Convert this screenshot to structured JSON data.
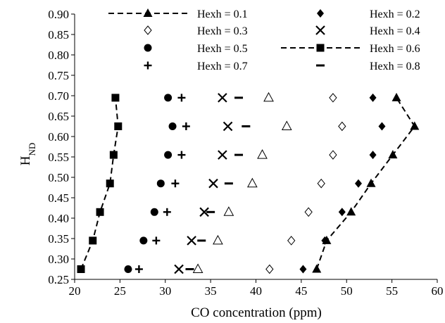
{
  "chart_data": {
    "type": "scatter",
    "title": "",
    "xlabel": "CO concentration (ppm)",
    "ylabel": "H",
    "ylabel_sub": "ND",
    "xlim": [
      20,
      60
    ],
    "ylim": [
      0.25,
      0.9
    ],
    "x_ticks": [
      "20",
      "25",
      "30",
      "35",
      "40",
      "45",
      "50",
      "55",
      "60"
    ],
    "y_ticks": [
      "0.25",
      "0.30",
      "0.35",
      "0.40",
      "0.45",
      "0.50",
      "0.55",
      "0.60",
      "0.65",
      "0.70",
      "0.75",
      "0.80",
      "0.85",
      "0.90"
    ],
    "grid": false,
    "legend_position": "top",
    "series": [
      {
        "name": "Hexh = 0.1",
        "marker": "triangle-filled",
        "line": "dashed",
        "x": [
          46.7,
          47.8,
          50.5,
          52.7,
          55.1,
          57.5,
          55.5
        ],
        "y": [
          0.275,
          0.345,
          0.415,
          0.485,
          0.555,
          0.625,
          0.695
        ]
      },
      {
        "name": "Hexh = 0.2",
        "marker": "diamond-filled",
        "line": "none",
        "x": [
          45.2,
          47.6,
          49.5,
          51.3,
          52.9,
          53.9,
          52.9
        ],
        "y": [
          0.275,
          0.345,
          0.415,
          0.485,
          0.555,
          0.625,
          0.695
        ]
      },
      {
        "name": "Hexh = 0.3",
        "marker": "diamond-open",
        "line": "none",
        "x": [
          41.5,
          43.9,
          45.8,
          47.2,
          48.5,
          49.5,
          48.5
        ],
        "y": [
          0.275,
          0.345,
          0.415,
          0.485,
          0.555,
          0.625,
          0.695
        ]
      },
      {
        "name": "Hexh = 0.4",
        "marker": "x",
        "line": "none",
        "x": [
          31.5,
          32.9,
          34.3,
          35.3,
          36.3,
          36.9,
          36.3
        ],
        "y": [
          0.275,
          0.345,
          0.415,
          0.485,
          0.555,
          0.625,
          0.695
        ]
      },
      {
        "name": "Hexh = 0.5",
        "marker": "circle-filled",
        "line": "none",
        "x": [
          25.9,
          27.6,
          28.8,
          29.5,
          30.3,
          30.8,
          30.3
        ],
        "y": [
          0.275,
          0.345,
          0.415,
          0.485,
          0.555,
          0.625,
          0.695
        ]
      },
      {
        "name": "Hexh = 0.6",
        "marker": "square-filled",
        "line": "dashed",
        "x": [
          20.7,
          22.0,
          22.8,
          23.9,
          24.3,
          24.8,
          24.5
        ],
        "y": [
          0.275,
          0.345,
          0.415,
          0.485,
          0.555,
          0.625,
          0.695
        ]
      },
      {
        "name": "Hexh = 0.7",
        "marker": "plus",
        "line": "none",
        "x": [
          27.1,
          29.0,
          30.2,
          31.1,
          31.8,
          32.3,
          31.8
        ],
        "y": [
          0.275,
          0.345,
          0.415,
          0.485,
          0.555,
          0.625,
          0.695
        ]
      },
      {
        "name": "Hexh = 0.8",
        "marker": "dash",
        "line": "none",
        "x": [
          32.7,
          34.0,
          35.0,
          37.0,
          38.1,
          38.9,
          38.1
        ],
        "y": [
          0.275,
          0.345,
          0.415,
          0.485,
          0.555,
          0.625,
          0.695
        ]
      },
      {
        "name": "",
        "marker": "triangle-open",
        "line": "none",
        "x": [
          33.6,
          35.8,
          37.0,
          39.6,
          40.7,
          43.4,
          41.4
        ],
        "y": [
          0.275,
          0.345,
          0.415,
          0.485,
          0.555,
          0.625,
          0.695
        ]
      }
    ]
  }
}
